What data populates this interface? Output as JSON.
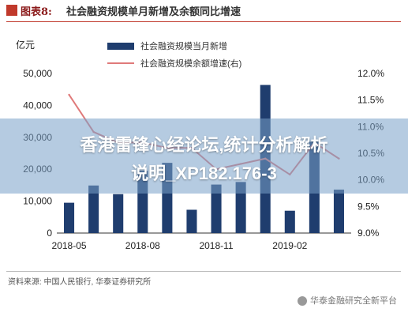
{
  "header": {
    "figure_label": "图表8:",
    "title": "社会融资规模单月新增及余额同比增速"
  },
  "unit_left": "亿元",
  "banner": {
    "line1": "香港雷锋心经论坛,统计分析解析",
    "line2": "说明_XP182.176-3"
  },
  "footer": {
    "source": "资料来源: 中国人民银行, 华泰证券研究所",
    "watermark": "华泰金融研究全新平台"
  },
  "colors": {
    "bar": "#1f3d6e",
    "line": "#e07a7a",
    "accent": "#c0392b"
  },
  "chart_data": {
    "type": "bar",
    "title": "社会融资规模单月新增及余额同比增速",
    "x_tick_labels": [
      "2018-05",
      "2018-08",
      "2018-11",
      "2019-02"
    ],
    "categories": [
      "2018-05",
      "2018-06",
      "2018-07",
      "2018-08",
      "2018-09",
      "2018-10",
      "2018-11",
      "2018-12",
      "2019-01",
      "2019-02",
      "2019-03",
      "2019-04"
    ],
    "series": [
      {
        "name": "社会融资规模当月新增",
        "type": "bar",
        "axis": "left",
        "values": [
          9500,
          14900,
          12200,
          19500,
          22000,
          7300,
          15200,
          16000,
          46400,
          7000,
          28600,
          13600
        ]
      },
      {
        "name": "社会融资规模余额增速(右)",
        "type": "line",
        "axis": "right",
        "values": [
          11.6,
          10.9,
          10.7,
          10.7,
          10.6,
          10.6,
          10.2,
          10.3,
          10.4,
          10.1,
          10.7,
          10.4
        ]
      }
    ],
    "y_left": {
      "ylim": [
        0,
        50000
      ],
      "ticks": [
        "0",
        "10,000",
        "20,000",
        "30,000",
        "40,000",
        "50,000"
      ]
    },
    "y_right": {
      "ylim": [
        9.0,
        12.0
      ],
      "ticks": [
        "9.0%",
        "9.5%",
        "10.0%",
        "10.5%",
        "11.0%",
        "11.5%",
        "12.0%"
      ]
    },
    "grid": false,
    "legend_position": "top"
  }
}
